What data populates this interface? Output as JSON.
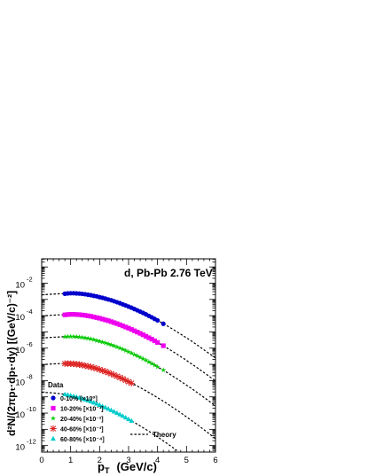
{
  "chart_data": {
    "type": "scatter",
    "title": "d, Pb-Pb 2.76 TeV",
    "xlabel": "p",
    "xlabel_sub": "T",
    "xlabel_unit": "(GeV/c)",
    "ylabel": "d²N/(2πpₜ·dpₜ·dy)  [(GeV/c)⁻²]",
    "xlim": [
      0,
      6
    ],
    "ylim_log10": [
      -12.4,
      -0.5
    ],
    "y_scale": "log",
    "x_ticks": [
      0,
      1,
      2,
      3,
      4,
      5,
      6
    ],
    "y_tick_exponents": [
      -12,
      -10,
      -8,
      -6,
      -4,
      -2
    ],
    "legend_title": "Data",
    "legend_position": "bottom-left",
    "theory_label": "Theory",
    "series": [
      {
        "name": "0-10% [×10⁰]",
        "color": "#0000cc",
        "marker": "circle",
        "x": [
          0.8,
          0.9,
          1.0,
          1.1,
          1.2,
          1.3,
          1.4,
          1.5,
          1.6,
          1.7,
          1.8,
          1.9,
          2.0,
          2.1,
          2.2,
          2.3,
          2.4,
          2.5,
          2.6,
          2.7,
          2.8,
          2.9,
          3.0,
          3.1,
          3.2,
          3.3,
          3.4,
          3.5,
          3.6,
          3.7,
          3.8,
          3.9,
          4.0,
          4.2
        ],
        "log10y": [
          -2.65,
          -2.63,
          -2.62,
          -2.62,
          -2.63,
          -2.64,
          -2.66,
          -2.68,
          -2.71,
          -2.74,
          -2.78,
          -2.81,
          -2.86,
          -2.9,
          -2.95,
          -3.0,
          -3.05,
          -3.11,
          -3.17,
          -3.23,
          -3.3,
          -3.37,
          -3.44,
          -3.51,
          -3.59,
          -3.67,
          -3.75,
          -3.83,
          -3.92,
          -4.01,
          -4.1,
          -4.2,
          -4.29,
          -4.5
        ]
      },
      {
        "name": "10-20% [×10⁻¹]",
        "color": "#ee00ee",
        "marker": "square",
        "x": [
          0.8,
          0.9,
          1.0,
          1.1,
          1.2,
          1.3,
          1.4,
          1.5,
          1.6,
          1.7,
          1.8,
          1.9,
          2.0,
          2.1,
          2.2,
          2.3,
          2.4,
          2.5,
          2.6,
          2.7,
          2.8,
          2.9,
          3.0,
          3.1,
          3.2,
          3.3,
          3.4,
          3.5,
          3.6,
          3.7,
          3.8,
          3.9,
          4.0,
          4.2
        ],
        "log10y": [
          -3.95,
          -3.93,
          -3.92,
          -3.92,
          -3.93,
          -3.94,
          -3.96,
          -3.98,
          -4.01,
          -4.04,
          -4.08,
          -4.12,
          -4.16,
          -4.21,
          -4.26,
          -4.31,
          -4.37,
          -4.43,
          -4.49,
          -4.56,
          -4.63,
          -4.7,
          -4.77,
          -4.85,
          -4.93,
          -5.01,
          -5.09,
          -5.18,
          -5.27,
          -5.36,
          -5.45,
          -5.55,
          -5.65,
          -5.85
        ]
      },
      {
        "name": "20-40% [×10⁻²]",
        "color": "#00cc00",
        "marker": "star",
        "x": [
          0.8,
          0.9,
          1.0,
          1.1,
          1.2,
          1.3,
          1.4,
          1.5,
          1.6,
          1.7,
          1.8,
          1.9,
          2.0,
          2.1,
          2.2,
          2.3,
          2.4,
          2.5,
          2.6,
          2.7,
          2.8,
          2.9,
          3.0,
          3.1,
          3.2,
          3.3,
          3.4,
          3.5,
          3.6,
          3.7,
          3.8,
          3.9,
          4.0,
          4.2
        ],
        "log10y": [
          -5.3,
          -5.29,
          -5.29,
          -5.29,
          -5.3,
          -5.32,
          -5.34,
          -5.37,
          -5.4,
          -5.44,
          -5.48,
          -5.53,
          -5.58,
          -5.63,
          -5.68,
          -5.74,
          -5.8,
          -5.86,
          -5.93,
          -6.0,
          -6.07,
          -6.15,
          -6.23,
          -6.31,
          -6.4,
          -6.48,
          -6.57,
          -6.66,
          -6.75,
          -6.85,
          -6.95,
          -7.05,
          -7.15,
          -7.35
        ]
      },
      {
        "name": "40-60% [×10⁻³]",
        "color": "#dd2222",
        "marker": "cross",
        "x": [
          0.8,
          0.9,
          1.0,
          1.1,
          1.2,
          1.3,
          1.4,
          1.5,
          1.6,
          1.7,
          1.8,
          1.9,
          2.0,
          2.1,
          2.2,
          2.3,
          2.4,
          2.5,
          2.6,
          2.7,
          2.8,
          2.9,
          3.0,
          3.1
        ],
        "log10y": [
          -6.95,
          -6.95,
          -6.96,
          -6.97,
          -6.99,
          -7.01,
          -7.04,
          -7.08,
          -7.12,
          -7.16,
          -7.21,
          -7.26,
          -7.32,
          -7.38,
          -7.44,
          -7.51,
          -7.58,
          -7.65,
          -7.73,
          -7.81,
          -7.89,
          -7.98,
          -8.07,
          -8.16
        ]
      },
      {
        "name": "60-80% [×10⁻⁴]",
        "color": "#00cccc",
        "marker": "triangle",
        "x": [
          0.8,
          0.9,
          1.0,
          1.1,
          1.2,
          1.3,
          1.4,
          1.5,
          1.6,
          1.7,
          1.8,
          1.9,
          2.0,
          2.1,
          2.2,
          2.3,
          2.4,
          2.5,
          2.6,
          2.7,
          2.8,
          2.9,
          3.0,
          3.1
        ],
        "log10y": [
          -8.85,
          -8.88,
          -8.92,
          -8.96,
          -9.01,
          -9.06,
          -9.11,
          -9.17,
          -9.23,
          -9.29,
          -9.36,
          -9.43,
          -9.5,
          -9.58,
          -9.66,
          -9.74,
          -9.82,
          -9.91,
          -10.0,
          -10.09,
          -10.18,
          -10.28,
          -10.38,
          -10.48
        ]
      }
    ],
    "theory": [
      {
        "x": [
          0,
          0.4,
          0.8,
          1.2,
          1.6,
          2.0,
          2.4,
          2.8,
          3.2,
          3.6,
          4.0,
          4.4,
          4.8,
          5.2,
          5.6,
          6.0
        ],
        "log10y": [
          -2.72,
          -2.67,
          -2.64,
          -2.64,
          -2.7,
          -2.86,
          -3.05,
          -3.3,
          -3.59,
          -3.92,
          -4.29,
          -4.7,
          -5.14,
          -5.6,
          -6.1,
          -6.6
        ]
      },
      {
        "x": [
          0,
          0.4,
          0.8,
          1.2,
          1.6,
          2.0,
          2.4,
          2.8,
          3.2,
          3.6,
          4.0,
          4.4,
          4.8,
          5.2,
          5.6,
          6.0
        ],
        "log10y": [
          -4.02,
          -3.97,
          -3.94,
          -3.94,
          -4.01,
          -4.16,
          -4.37,
          -4.63,
          -4.93,
          -5.27,
          -5.65,
          -6.07,
          -6.52,
          -7.0,
          -7.5,
          -8.02
        ]
      },
      {
        "x": [
          0,
          0.4,
          0.8,
          1.2,
          1.6,
          2.0,
          2.4,
          2.8,
          3.2,
          3.6,
          4.0,
          4.4,
          4.8,
          5.2,
          5.6,
          6.0
        ],
        "log10y": [
          -5.38,
          -5.33,
          -5.3,
          -5.3,
          -5.4,
          -5.58,
          -5.8,
          -6.07,
          -6.4,
          -6.75,
          -7.15,
          -7.58,
          -8.04,
          -8.52,
          -9.03,
          -9.56
        ]
      },
      {
        "x": [
          0,
          0.4,
          0.8,
          1.2,
          1.6,
          2.0,
          2.4,
          2.8,
          3.2,
          3.6,
          4.0,
          4.4,
          4.8,
          5.2,
          5.6,
          6.0
        ],
        "log10y": [
          -7.02,
          -6.97,
          -6.95,
          -6.99,
          -7.12,
          -7.32,
          -7.58,
          -7.89,
          -8.24,
          -8.63,
          -9.05,
          -9.5,
          -9.98,
          -10.49,
          -11.02,
          -11.57
        ]
      },
      {
        "x": [
          0,
          0.4,
          0.8,
          1.2,
          1.6,
          2.0,
          2.4,
          2.8,
          3.2,
          3.6,
          4.0,
          4.4,
          4.8,
          5.2,
          5.6,
          6.0
        ],
        "log10y": [
          -8.72,
          -8.76,
          -8.85,
          -9.01,
          -9.23,
          -9.5,
          -9.82,
          -10.18,
          -10.58,
          -11.01,
          -11.47,
          -11.96,
          -12.48,
          -13.02,
          -13.58,
          -14.16
        ]
      }
    ]
  }
}
